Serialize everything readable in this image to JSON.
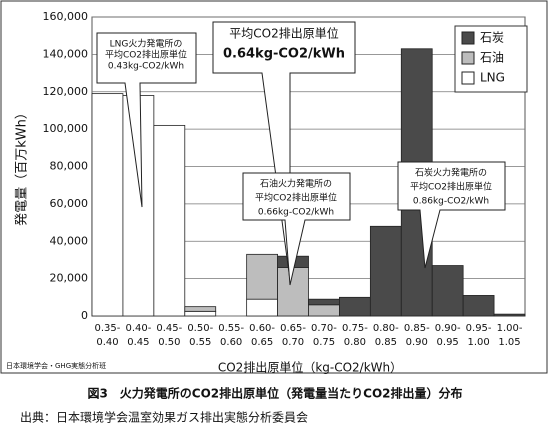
{
  "chart_data": {
    "type": "bar",
    "stacked": true,
    "y_label": "発電量（百万kWh）",
    "x_label": "CO2排出原単位（kg-CO2/kWh）",
    "categories": [
      "0.35-0.40",
      "0.40-0.45",
      "0.45-0.50",
      "0.50-0.55",
      "0.55-0.60",
      "0.60-0.65",
      "0.65-0.70",
      "0.70-0.75",
      "0.75-0.80",
      "0.80-0.85",
      "0.85-0.90",
      "0.90-0.95",
      "0.95-1.00",
      "1.00-1.05"
    ],
    "series": [
      {
        "name": "LNG",
        "color": "#ffffff",
        "values": [
          119000,
          118000,
          102000,
          2500,
          0,
          9000,
          0,
          0,
          0,
          0,
          0,
          0,
          0,
          0
        ]
      },
      {
        "name": "石油",
        "color": "#bdbdbd",
        "values": [
          0,
          0,
          0,
          2500,
          0,
          24000,
          26000,
          6000,
          0,
          0,
          0,
          0,
          0,
          0
        ]
      },
      {
        "name": "石炭",
        "color": "#4a4a4a",
        "values": [
          0,
          0,
          0,
          0,
          0,
          0,
          6000,
          3000,
          10000,
          48000,
          143000,
          27000,
          11000,
          1000
        ]
      }
    ],
    "legend_order": [
      2,
      1,
      0
    ],
    "ylim": [
      0,
      160000
    ],
    "yticks": [
      0,
      {
        "value": 20000,
        "label": "20,000"
      },
      {
        "value": 40000,
        "label": "40,000"
      },
      {
        "value": 60000,
        "label": "60,000"
      },
      {
        "value": 80000,
        "label": "80,000"
      },
      {
        "value": 100000,
        "label": "100,000"
      },
      {
        "value": 120000,
        "label": "120,000"
      },
      {
        "value": 140000,
        "label": "140,000"
      },
      {
        "value": 160000,
        "label": "160,000"
      }
    ],
    "annotations": [
      {
        "lines": [
          "LNG火力発電所の",
          "平均CO2排出原単位",
          "0.43kg-CO2/kWh"
        ]
      },
      {
        "lines": [
          "平均CO2排出原単位",
          "0.64kg-CO2/kWh"
        ]
      },
      {
        "lines": [
          "石油火力発電所の",
          "平均CO2排出原単位",
          "0.66kg-CO2/kWh"
        ]
      },
      {
        "lines": [
          "石炭火力発電所の",
          "平均CO2排出原単位",
          "0.86kg-CO2/kWh"
        ]
      }
    ],
    "credit": "日本環境学会・GHG実態分析班"
  },
  "caption": "図3　火力発電所のCO2排出原単位（発電量当たりCO2排出量）分布",
  "source": "出典：日本環境学会温室効果ガス排出実態分析委員会"
}
